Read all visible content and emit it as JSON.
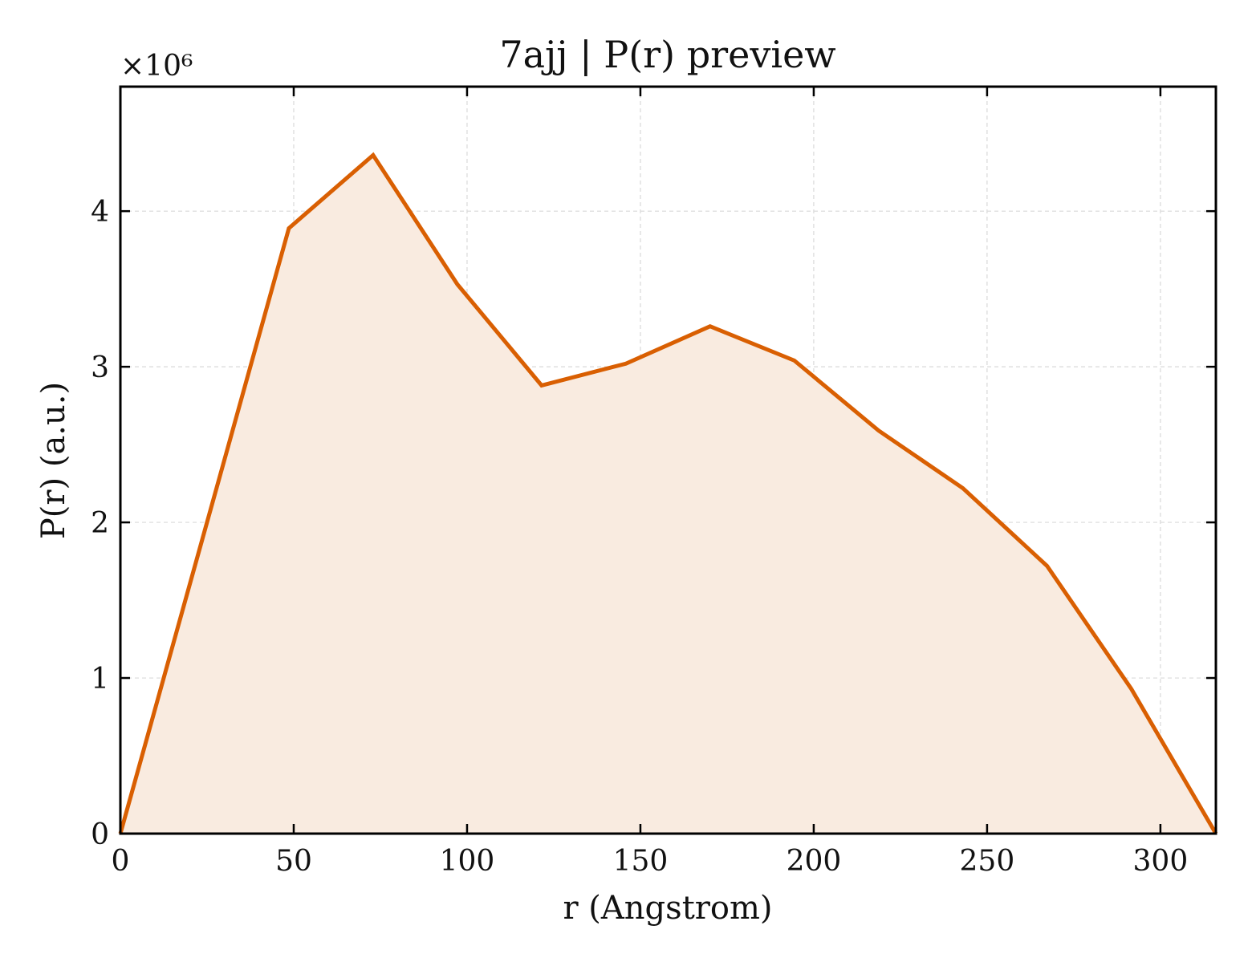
{
  "chart_data": {
    "type": "area",
    "title": "7ajj | P(r) preview",
    "xlabel": "r (Angstrom)",
    "ylabel": "P(r) (a.u.)",
    "y_multiplier_label": "×10⁶",
    "y_scale": 1000000,
    "xlim": [
      0,
      316
    ],
    "ylim": [
      0,
      4.8
    ],
    "xticks": [
      0,
      50,
      100,
      150,
      200,
      250,
      300
    ],
    "yticks": [
      0,
      1,
      2,
      3,
      4
    ],
    "grid": true,
    "legend": "none",
    "series": [
      {
        "x": [
          0,
          48.6,
          72.9,
          97.2,
          121.5,
          145.8,
          170.1,
          194.4,
          218.7,
          243.0,
          267.3,
          291.6,
          316
        ],
        "y": [
          0,
          3.89,
          4.36,
          3.53,
          2.88,
          3.02,
          3.26,
          3.04,
          2.59,
          2.22,
          1.72,
          0.93,
          0
        ]
      }
    ],
    "colors": {
      "line": "#d95f02",
      "fill": "#f9ebe0",
      "grid": "#d9d9d9",
      "axis": "#000000"
    }
  }
}
